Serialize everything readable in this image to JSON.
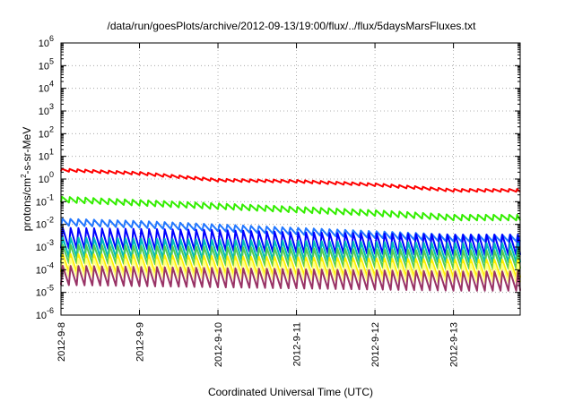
{
  "chart_data": {
    "type": "line",
    "title": "/data/run/goesPlots/archive/2012-09-13/19:00/flux/../flux/5daysMarsFluxes.txt",
    "xlabel": "Coordinated Universal Time (UTC)",
    "ylabel": {
      "base": "protons/cm",
      "sup": "2",
      "rest": "-s-sr-MeV"
    },
    "y_scale": "log",
    "ylim_exp": [
      -6,
      6
    ],
    "y_tick_exponents": [
      -6,
      -5,
      -4,
      -3,
      -2,
      -1,
      0,
      1,
      2,
      3,
      4,
      5,
      6
    ],
    "y_tick_base": "10",
    "x_tick_labels": [
      "2012-9-8",
      "2012-9-9",
      "2012-9-10",
      "2012-9-11",
      "2012-9-12",
      "2012-9-13"
    ],
    "x_range_days": [
      0,
      5.85
    ],
    "grid": true,
    "legend": "none",
    "sawtooth_period_days": 0.1,
    "series": [
      {
        "color": "#ff0000",
        "trend_log10": [
          0.4,
          0.25,
          -0.05,
          -0.1,
          -0.25,
          -0.5
        ],
        "amp_log10": 0.12,
        "drop": 0.1
      },
      {
        "color": "#33ee00",
        "trend_log10": [
          -0.9,
          -1.05,
          -1.2,
          -1.35,
          -1.5,
          -1.7
        ],
        "amp_log10": 0.25,
        "drop": 0.12
      },
      {
        "color": "#2277ff",
        "trend_log10": [
          -1.9,
          -2.0,
          -2.15,
          -2.3,
          -2.45,
          -2.6
        ],
        "amp_log10": 0.3,
        "drop": 0.2
      },
      {
        "color": "#0000ff",
        "trend_log10": [
          -2.6,
          -2.65,
          -2.7,
          -2.8,
          -2.85,
          -2.9
        ],
        "amp_log10": 0.9,
        "drop": 0.22
      },
      {
        "color": "#00bbbb",
        "trend_log10": [
          -3.0,
          -3.05,
          -3.1,
          -3.15,
          -3.2,
          -3.25
        ],
        "amp_log10": 0.85,
        "drop": 0.22
      },
      {
        "color": "#55cc55",
        "trend_log10": [
          -3.3,
          -3.35,
          -3.4,
          -3.45,
          -3.5,
          -3.55
        ],
        "amp_log10": 0.8,
        "drop": 0.22
      },
      {
        "color": "#ffee00",
        "trend_log10": [
          -3.7,
          -3.75,
          -3.8,
          -3.85,
          -3.9,
          -3.95
        ],
        "amp_log10": 0.8,
        "drop": 0.22
      },
      {
        "color": "#ffff88",
        "trend_log10": [
          -3.9,
          -3.95,
          -4.0,
          -4.05,
          -4.1,
          -4.15
        ],
        "amp_log10": 0.8,
        "drop": 0.22
      },
      {
        "color": "#993366",
        "trend_log10": [
          -4.25,
          -4.3,
          -4.35,
          -4.4,
          -4.45,
          -4.5
        ],
        "amp_log10": 0.85,
        "drop": 0.22
      }
    ]
  }
}
